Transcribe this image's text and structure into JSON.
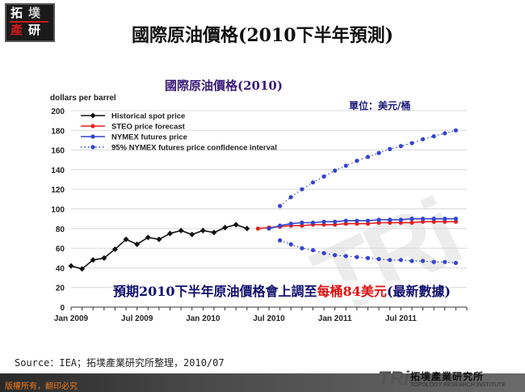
{
  "logo": {
    "chars": [
      "拓",
      "墣",
      "產",
      "研"
    ]
  },
  "page_title": "國際原油價格(2010下半年預測)",
  "unit": "單位：美元/桶",
  "annotation": {
    "prefix": "預期2010下半年原油價格會上調至",
    "highlight": "每桶84美元",
    "suffix": "(最新數據)"
  },
  "source": "Source：IEA；拓墣產業研究所整理，2010/07",
  "copyright": "版權所有，翻印必究",
  "tri_logo": {
    "mark": "TRi",
    "cn": "拓墣產業研究所",
    "en": "TOPOLOGY RESEARCH INSTITUTE"
  },
  "chart_data": {
    "type": "line",
    "title": "國際原油價格(2010)",
    "ylabel": "dollars per barrel",
    "xlabel": "",
    "ylim": [
      0,
      200
    ],
    "yticks": [
      0,
      20,
      40,
      60,
      80,
      100,
      120,
      140,
      160,
      180,
      200
    ],
    "xlim": [
      0,
      36
    ],
    "xtick_labels": [
      {
        "x": 0,
        "label": "Jan 2009"
      },
      {
        "x": 6,
        "label": "Jul 2009"
      },
      {
        "x": 12,
        "label": "Jan 2010"
      },
      {
        "x": 18,
        "label": "Jul 2010"
      },
      {
        "x": 24,
        "label": "Jan 2011"
      },
      {
        "x": 30,
        "label": "Jul 2011"
      }
    ],
    "grid": true,
    "legend_position": "top-left",
    "series": [
      {
        "name": "Historical spot price",
        "color": "#111111",
        "style": "solid",
        "marker": "diamond",
        "x": [
          0,
          1,
          2,
          3,
          4,
          5,
          6,
          7,
          8,
          9,
          10,
          11,
          12,
          13,
          14,
          15,
          16
        ],
        "y": [
          42,
          39,
          48,
          50,
          59,
          69,
          64,
          71,
          69,
          75,
          78,
          74,
          78,
          76,
          81,
          84,
          80
        ]
      },
      {
        "name": "STEO price forecast",
        "color": "#e02020",
        "style": "solid",
        "marker": "circle",
        "x": [
          17,
          18,
          19,
          20,
          21,
          22,
          23,
          24,
          25,
          26,
          27,
          28,
          29,
          30,
          31,
          32,
          33,
          34,
          35
        ],
        "y": [
          80,
          81,
          82,
          83,
          83,
          84,
          84,
          84,
          85,
          85,
          85,
          86,
          86,
          86,
          86,
          87,
          87,
          87,
          87
        ]
      },
      {
        "name": "NYMEX futures price",
        "color": "#3344cc",
        "style": "solid",
        "marker": "circle",
        "x": [
          18,
          19,
          20,
          21,
          22,
          23,
          24,
          25,
          26,
          27,
          28,
          29,
          30,
          31,
          32,
          33,
          34,
          35
        ],
        "y": [
          80,
          83,
          85,
          86,
          86,
          87,
          87,
          88,
          88,
          88,
          89,
          89,
          89,
          90,
          90,
          90,
          90,
          90
        ]
      },
      {
        "name": "95% NYMEX futures price confidence interval",
        "color": "#3344cc",
        "style": "dotted",
        "marker": "circle",
        "band_upper": {
          "x": [
            19,
            20,
            21,
            22,
            23,
            24,
            25,
            26,
            27,
            28,
            29,
            30,
            31,
            32,
            33,
            34,
            35
          ],
          "y": [
            103,
            112,
            120,
            127,
            133,
            139,
            144,
            149,
            153,
            157,
            161,
            164,
            167,
            171,
            174,
            177,
            180
          ]
        },
        "band_lower": {
          "x": [
            19,
            20,
            21,
            22,
            23,
            24,
            25,
            26,
            27,
            28,
            29,
            30,
            31,
            32,
            33,
            34,
            35
          ],
          "y": [
            68,
            64,
            60,
            58,
            55,
            53,
            52,
            51,
            50,
            49,
            48,
            48,
            47,
            47,
            46,
            46,
            45
          ]
        }
      }
    ]
  }
}
